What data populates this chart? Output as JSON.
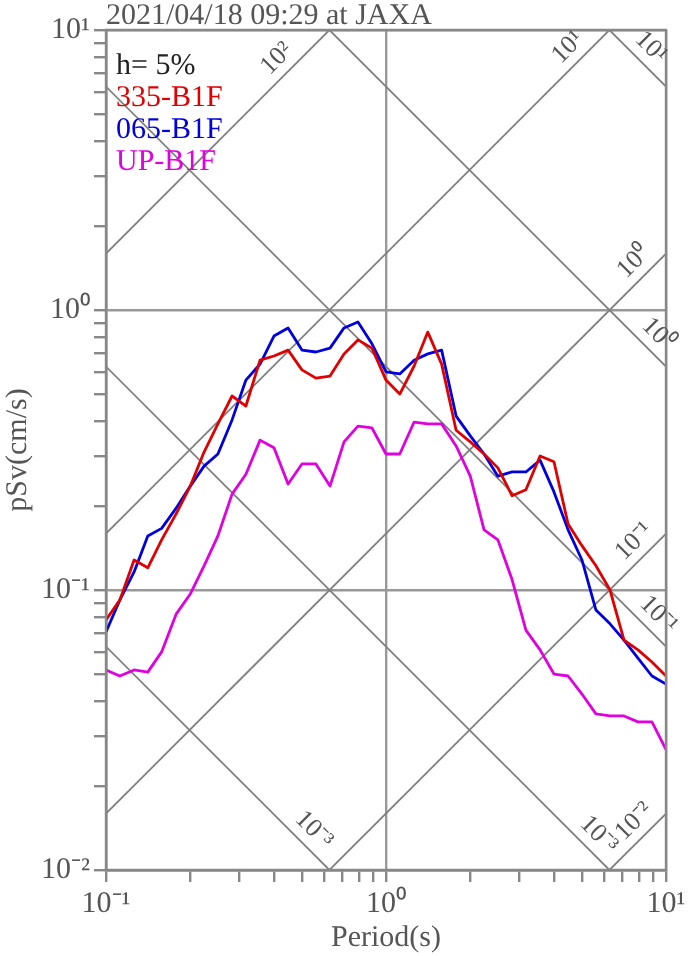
{
  "chart_data": {
    "type": "line",
    "title": "2021/04/18 09:29 at JAXA",
    "xlabel": "Period(s)",
    "ylabel": "pSv(cm/s)",
    "log": "xy",
    "grid": true,
    "legend": "top left",
    "marker": "none",
    "xlim": [
      0.1,
      10
    ],
    "ylim": [
      0.01,
      10
    ],
    "xticks": [
      {
        "value": 0.1,
        "label": "10⁻¹"
      },
      {
        "value": 0.2,
        "label": null
      },
      {
        "value": 0.3,
        "label": null
      },
      {
        "value": 0.4,
        "label": null
      },
      {
        "value": 0.5,
        "label": null
      },
      {
        "value": 0.6,
        "label": null
      },
      {
        "value": 0.7,
        "label": null
      },
      {
        "value": 0.8,
        "label": null
      },
      {
        "value": 0.9,
        "label": null
      },
      {
        "value": 1,
        "label": "10⁰"
      },
      {
        "value": 2,
        "label": null
      },
      {
        "value": 3,
        "label": null
      },
      {
        "value": 4,
        "label": null
      },
      {
        "value": 5,
        "label": null
      },
      {
        "value": 6,
        "label": null
      },
      {
        "value": 7,
        "label": null
      },
      {
        "value": 8,
        "label": null
      },
      {
        "value": 9,
        "label": null
      },
      {
        "value": 10,
        "label": "10¹"
      }
    ],
    "yticks": [
      {
        "value": 0.01,
        "label": "10⁻²"
      },
      {
        "value": 0.02,
        "label": null
      },
      {
        "value": 0.03,
        "label": null
      },
      {
        "value": 0.04,
        "label": null
      },
      {
        "value": 0.05,
        "label": null
      },
      {
        "value": 0.06,
        "label": null
      },
      {
        "value": 0.07,
        "label": null
      },
      {
        "value": 0.08,
        "label": null
      },
      {
        "value": 0.09,
        "label": null
      },
      {
        "value": 0.1,
        "label": "10⁻¹"
      },
      {
        "value": 0.2,
        "label": null
      },
      {
        "value": 0.3,
        "label": null
      },
      {
        "value": 0.4,
        "label": null
      },
      {
        "value": 0.5,
        "label": null
      },
      {
        "value": 0.6,
        "label": null
      },
      {
        "value": 0.7,
        "label": null
      },
      {
        "value": 0.8,
        "label": null
      },
      {
        "value": 0.9,
        "label": null
      },
      {
        "value": 1,
        "label": "10⁰"
      },
      {
        "value": 2,
        "label": null
      },
      {
        "value": 3,
        "label": null
      },
      {
        "value": 4,
        "label": null
      },
      {
        "value": 5,
        "label": null
      },
      {
        "value": 6,
        "label": null
      },
      {
        "value": 7,
        "label": null
      },
      {
        "value": 8,
        "label": null
      },
      {
        "value": 9,
        "label": null
      },
      {
        "value": 10,
        "label": "10¹"
      }
    ],
    "x": [
      0.1,
      0.112,
      0.126,
      0.141,
      0.158,
      0.178,
      0.2,
      0.224,
      0.251,
      0.282,
      0.316,
      0.355,
      0.398,
      0.447,
      0.501,
      0.562,
      0.631,
      0.708,
      0.794,
      0.891,
      1,
      1.12,
      1.26,
      1.41,
      1.58,
      1.78,
      2,
      2.24,
      2.51,
      2.82,
      3.16,
      3.55,
      3.98,
      4.47,
      5.01,
      5.62,
      6.31,
      7.08,
      7.94,
      8.91,
      10
    ],
    "series": [
      {
        "type": "line",
        "color": "#808080",
        "x": [
          0.1,
          0.628
        ],
        "values": [
          1.59,
          10
        ]
      },
      {
        "type": "line",
        "color": "#808080",
        "x": [
          0.1,
          6.28
        ],
        "values": [
          0.159,
          10
        ]
      },
      {
        "type": "line",
        "color": "#808080",
        "x": [
          0.1,
          10
        ],
        "values": [
          0.0159,
          1.59
        ]
      },
      {
        "type": "line",
        "color": "#808080",
        "x": [
          0.628,
          10
        ],
        "values": [
          0.01,
          0.159
        ]
      },
      {
        "type": "line",
        "color": "#808080",
        "x": [
          6.28,
          10
        ],
        "values": [
          0.01,
          0.0159
        ]
      },
      {
        "type": "line",
        "color": "#808080",
        "x": [
          6.28,
          10
        ],
        "values": [
          10,
          6.28
        ]
      },
      {
        "type": "line",
        "color": "#808080",
        "x": [
          0.628,
          10
        ],
        "values": [
          10,
          0.628
        ]
      },
      {
        "type": "line",
        "color": "#808080",
        "x": [
          0.1,
          10
        ],
        "values": [
          6.28,
          0.0628
        ]
      },
      {
        "type": "line",
        "color": "#808080",
        "x": [
          0.1,
          6.28
        ],
        "values": [
          0.628,
          0.01
        ]
      },
      {
        "type": "line",
        "color": "#808080",
        "x": [
          0.1,
          0.628
        ],
        "values": [
          0.0628,
          0.01
        ]
      },
      {
        "name": "335-B1F",
        "color": "#e00000",
        "values": [
          0.0782,
          0.092,
          0.128,
          0.12,
          0.151,
          0.187,
          0.235,
          0.311,
          0.392,
          0.493,
          0.454,
          0.662,
          0.685,
          0.719,
          0.611,
          0.571,
          0.581,
          0.697,
          0.782,
          0.731,
          0.562,
          0.501,
          0.631,
          0.834,
          0.641,
          0.372,
          0.338,
          0.306,
          0.273,
          0.217,
          0.228,
          0.301,
          0.287,
          0.172,
          0.144,
          0.122,
          0.1,
          0.0662,
          0.0611,
          0.0553,
          0.0493
        ]
      },
      {
        "name": "065-B1F",
        "color": "#0000e0",
        "values": [
          0.0708,
          0.092,
          0.116,
          0.156,
          0.166,
          0.196,
          0.235,
          0.277,
          0.306,
          0.405,
          0.562,
          0.641,
          0.807,
          0.863,
          0.719,
          0.708,
          0.731,
          0.863,
          0.906,
          0.757,
          0.601,
          0.591,
          0.662,
          0.697,
          0.719,
          0.418,
          0.355,
          0.306,
          0.255,
          0.264,
          0.264,
          0.291,
          0.224,
          0.164,
          0.128,
          0.0848,
          0.0757,
          0.0662,
          0.0571,
          0.0493,
          0.0461
        ]
      },
      {
        "name": "UP-B1F",
        "color": "#e000e0",
        "values": [
          0.0518,
          0.0493,
          0.0518,
          0.0509,
          0.0601,
          0.082,
          0.0968,
          0.122,
          0.156,
          0.22,
          0.259,
          0.343,
          0.322,
          0.239,
          0.282,
          0.282,
          0.235,
          0.338,
          0.385,
          0.379,
          0.306,
          0.306,
          0.398,
          0.392,
          0.392,
          0.327,
          0.255,
          0.164,
          0.151,
          0.109,
          0.0719,
          0.0611,
          0.0501,
          0.0493,
          0.0425,
          0.0361,
          0.0355,
          0.0355,
          0.0338,
          0.0338,
          0.0269
        ]
      }
    ],
    "annotations": [
      "h= 5%",
      {
        "text": "10²",
        "x": 0.45,
        "y": 7.16
      },
      {
        "text": "10¹",
        "x": 4.93,
        "y": 7.85
      },
      {
        "text": "10¹",
        "x": 8,
        "y": 7.85
      },
      {
        "text": "10⁰",
        "x": 8.5,
        "y": 1.35
      },
      {
        "text": "10⁰",
        "x": 8.5,
        "y": 0.739
      },
      {
        "text": "10⁻¹",
        "x": 8.5,
        "y": 0.135
      },
      {
        "text": "10⁻¹",
        "x": 8.5,
        "y": 0.0739
      },
      {
        "text": "10⁻³",
        "x": 0.5,
        "y": 0.0126
      },
      {
        "text": "10⁻³",
        "x": 5.2,
        "y": 0.0121
      },
      {
        "text": "10⁻²",
        "x": 8.5,
        "y": 0.0135
      }
    ]
  }
}
